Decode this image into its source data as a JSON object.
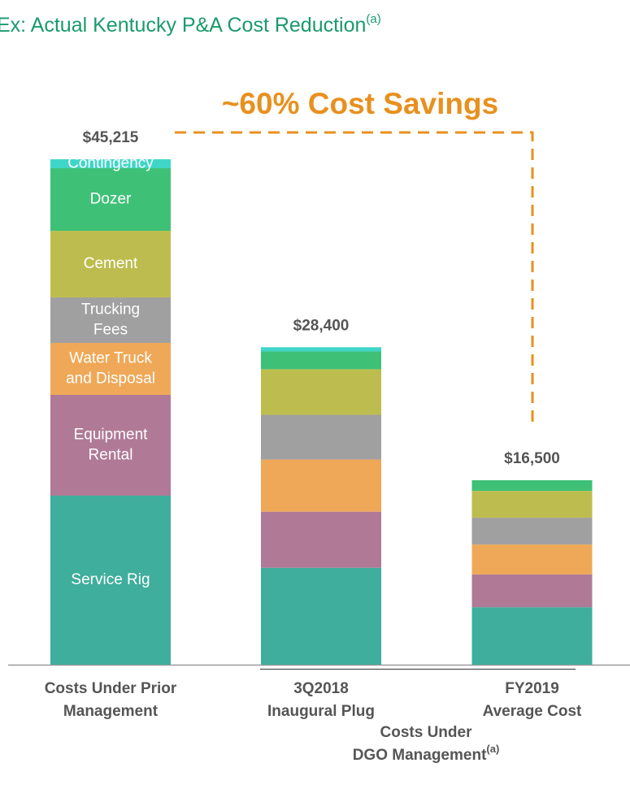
{
  "chart_data": {
    "type": "stacked_bar",
    "title": "Ex: Actual Kentucky P&A Cost Reduction",
    "title_note": "(a)",
    "annotation": "~60% Cost Savings",
    "categories": [
      "Costs Under Prior\nManagement",
      "3Q2018\nInaugural Plug",
      "FY2019\nAverage Cost"
    ],
    "group_label": {
      "text": "Costs Under\nDGO Management",
      "note": "(a)"
    },
    "series": [
      {
        "name": "Service Rig",
        "color": "#3fae9c",
        "values": [
          15120,
          8670,
          5140
        ]
      },
      {
        "name": "Equipment\nRental",
        "color": "#b07a96",
        "values": [
          9015,
          5020,
          2940
        ]
      },
      {
        "name": "Water Truck\nand Disposal",
        "color": "#efa857",
        "values": [
          4650,
          4660,
          2670
        ]
      },
      {
        "name": "Trucking\nFees",
        "color": "#a0a0a0",
        "values": [
          4070,
          4000,
          2400
        ]
      },
      {
        "name": "Cement",
        "color": "#bdbd4f",
        "values": [
          5960,
          4080,
          2400
        ]
      },
      {
        "name": "Dozer",
        "color": "#3ec177",
        "values": [
          5600,
          1600,
          950
        ]
      },
      {
        "name": "Contingency",
        "color": "#3fd6c8",
        "values": [
          800,
          370,
          0
        ]
      }
    ],
    "totals": {
      "values": [
        45215,
        28400,
        16500
      ],
      "value_labels": [
        "$45,215",
        "$28,400",
        "$16,500"
      ]
    }
  }
}
